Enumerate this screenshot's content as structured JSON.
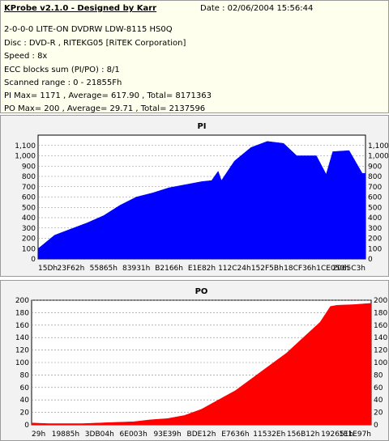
{
  "info": {
    "title": "KProbe v2.1.0 - Designed by Karr",
    "date": "Date : 02/06/2004 15:56:44",
    "lines": [
      "2-0-0-0 LITE-ON DVDRW LDW-8115   HS0Q",
      "Disc : DVD-R , RITEKG05 [RiTEK Corporation]",
      "Speed : 8x",
      "ECC blocks sum (PI/PO) : 8/1",
      "Scanned range : 0 - 21855Fh",
      "PI Max= 1171 , Average= 617.90 , Total= 8171363",
      "PO Max= 200 , Average= 29.71 , Total= 2137596"
    ]
  },
  "chart_data": [
    {
      "type": "area",
      "title": "PI",
      "color": "#0000ff",
      "ylim": [
        0,
        1200
      ],
      "yticks": [
        "1,100",
        "1,000",
        "900",
        "800",
        "700",
        "600",
        "500",
        "400",
        "300",
        "200",
        "100",
        "0"
      ],
      "xticks": [
        "15Dh",
        "23F62h",
        "55865h",
        "83931h",
        "B2166h",
        "E1E82h",
        "112C24h",
        "152F5Bh",
        "18CF36h",
        "1CE050h",
        "2065C3h"
      ],
      "series": [
        {
          "x": [
            0,
            0.05,
            0.1,
            0.15,
            0.2,
            0.25,
            0.3,
            0.35,
            0.4,
            0.45,
            0.5,
            0.53,
            0.55,
            0.56,
            0.6,
            0.65,
            0.7,
            0.75,
            0.79,
            0.8,
            0.85,
            0.88,
            0.9,
            0.95,
            0.99,
            1.0
          ],
          "values": [
            100,
            230,
            290,
            350,
            420,
            520,
            600,
            640,
            690,
            720,
            750,
            760,
            850,
            760,
            950,
            1080,
            1140,
            1120,
            1000,
            1000,
            1000,
            820,
            1040,
            1050,
            830,
            830
          ]
        }
      ]
    },
    {
      "type": "area",
      "title": "PO",
      "color": "#ff0000",
      "ylim": [
        0,
        200
      ],
      "yticks": [
        "200",
        "180",
        "160",
        "140",
        "120",
        "100",
        "80",
        "60",
        "40",
        "20",
        "0"
      ],
      "xticks": [
        "29h",
        "19885h",
        "3DB04h",
        "6E003h",
        "93E39h",
        "BDE12h",
        "E7636h",
        "11532Eh",
        "156B12h",
        "192651h",
        "1E1E97h"
      ],
      "series": [
        {
          "x": [
            0,
            0.05,
            0.1,
            0.15,
            0.2,
            0.25,
            0.3,
            0.35,
            0.4,
            0.45,
            0.5,
            0.55,
            0.6,
            0.65,
            0.7,
            0.75,
            0.8,
            0.85,
            0.88,
            0.9,
            0.95,
            1.0
          ],
          "values": [
            3,
            2,
            2,
            2,
            3,
            4,
            5,
            8,
            10,
            15,
            25,
            40,
            55,
            75,
            95,
            115,
            140,
            165,
            190,
            192,
            193,
            195
          ]
        }
      ]
    }
  ]
}
